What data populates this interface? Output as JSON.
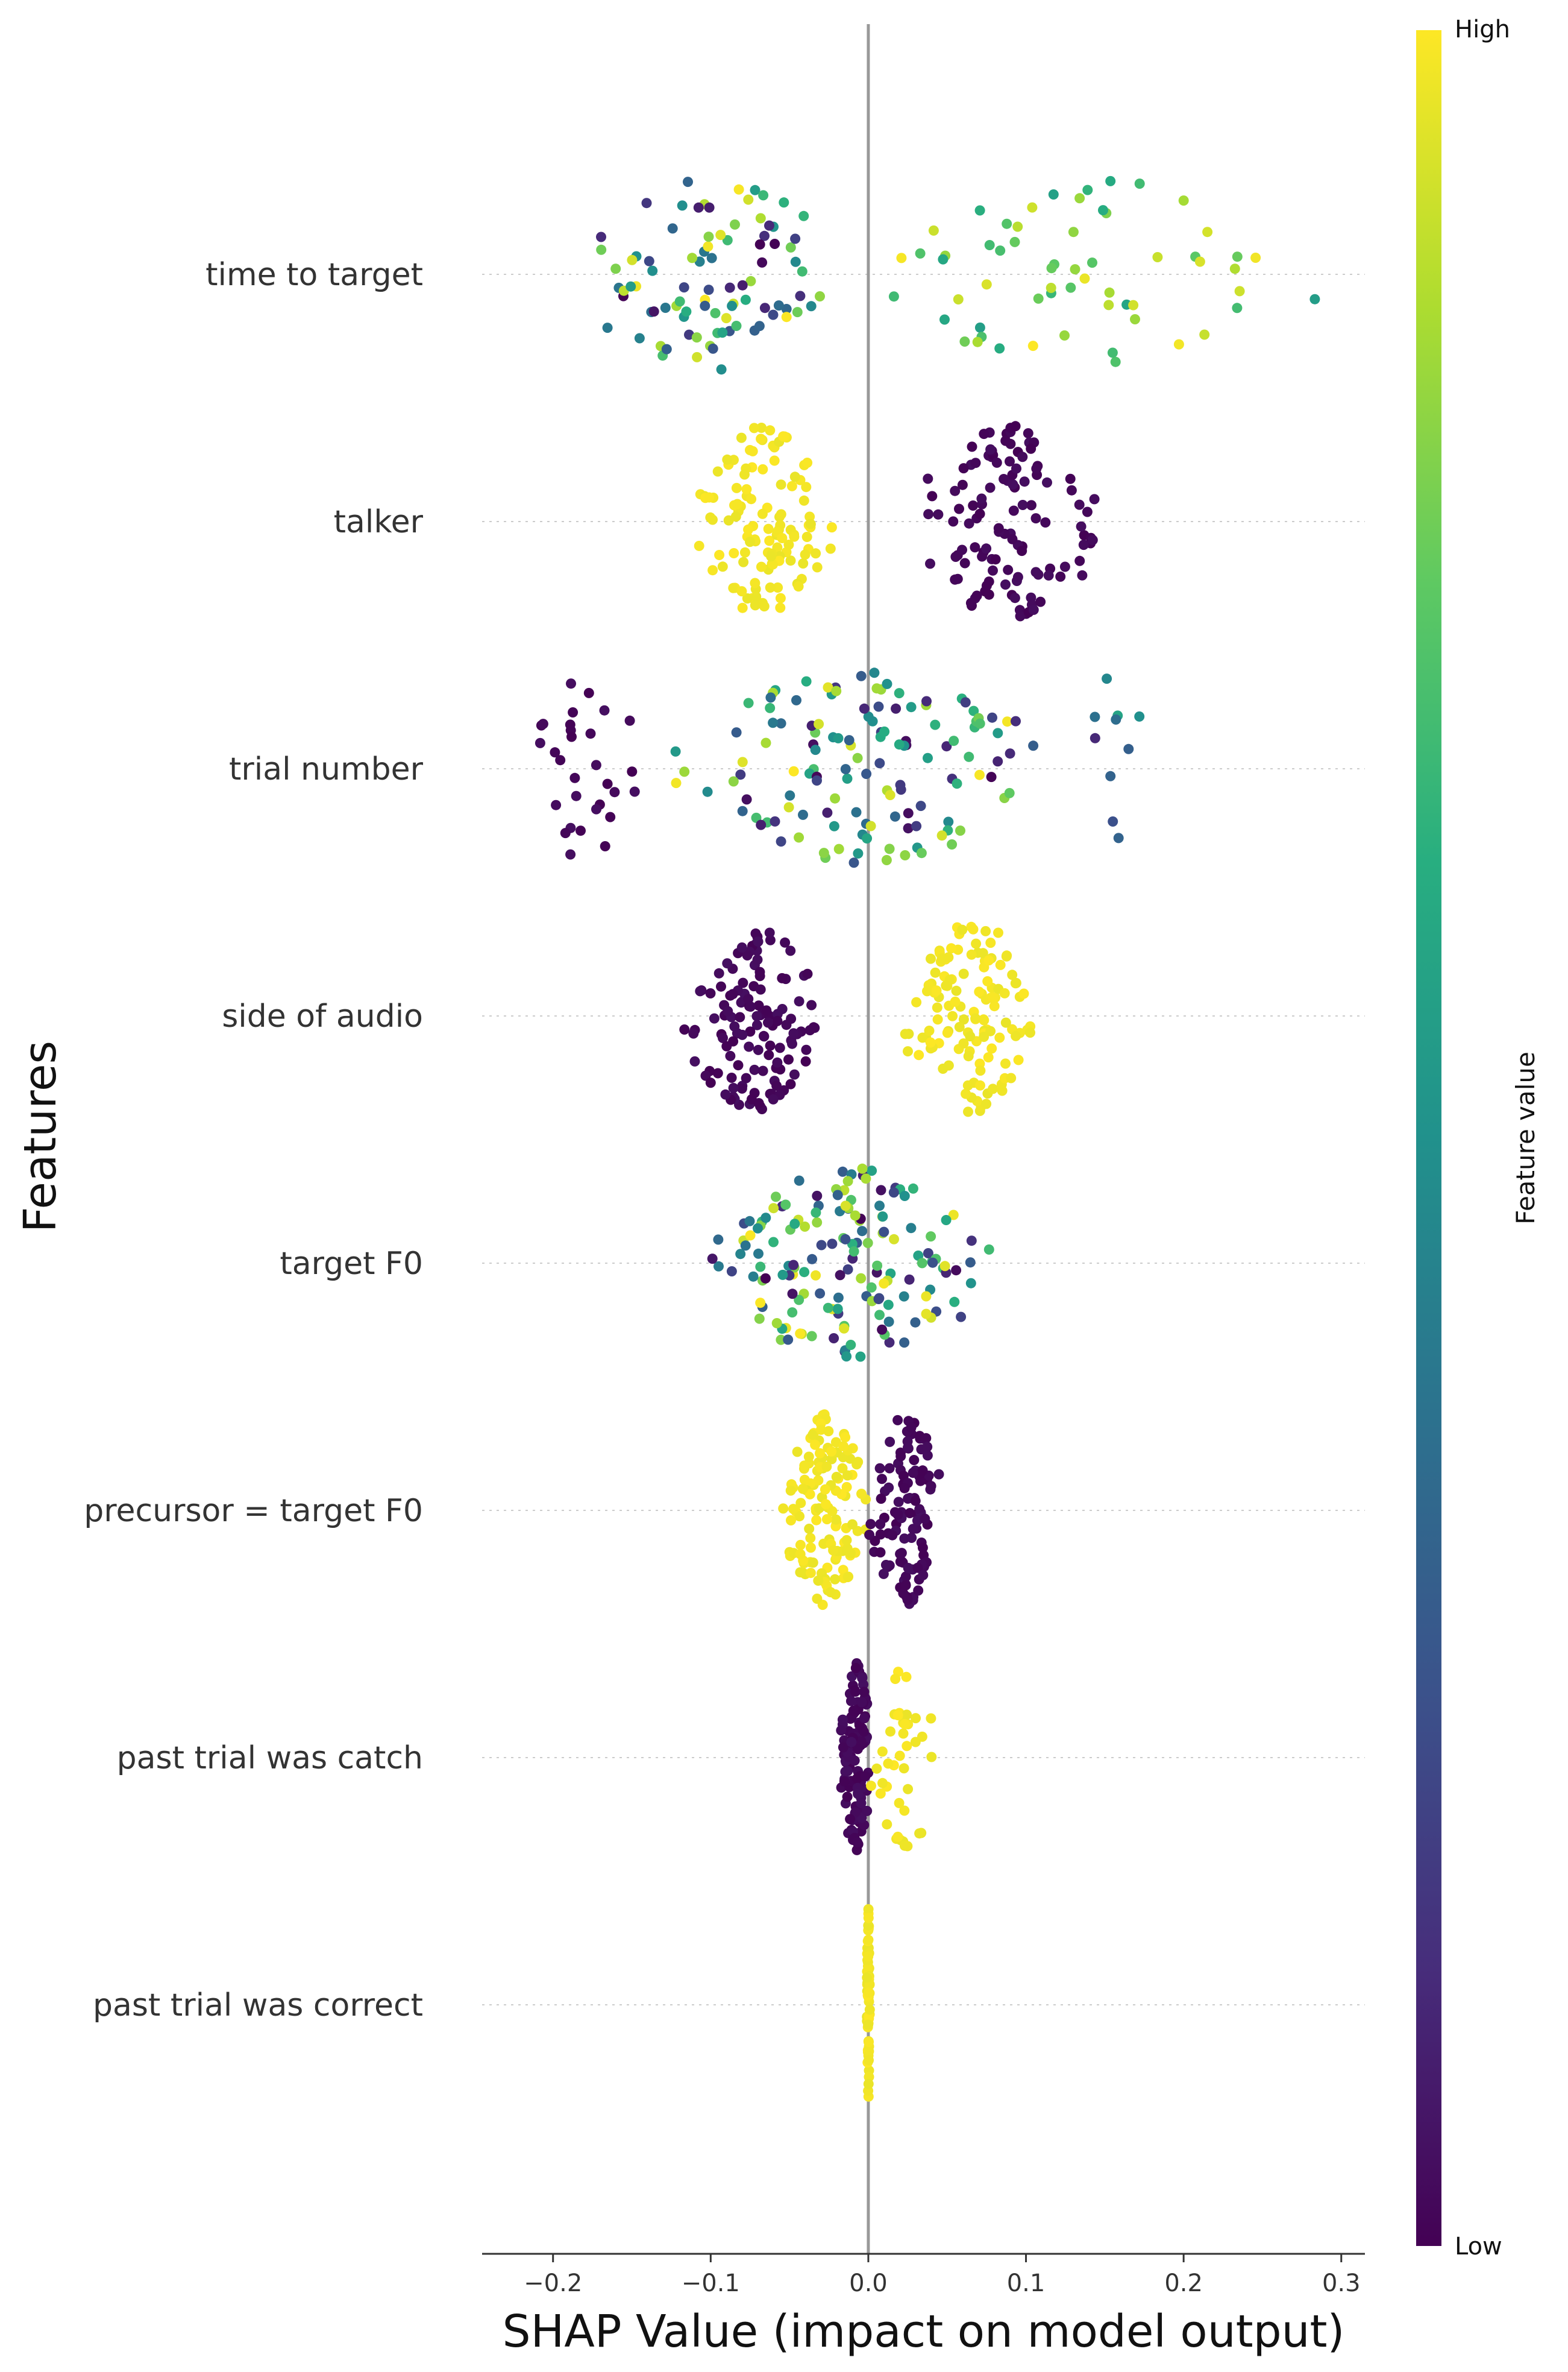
{
  "chart_data": {
    "type": "scatter",
    "subtype": "shap-beeswarm",
    "xlabel": "SHAP Value (impact on model output)",
    "ylabel": "Features",
    "xlim": [
      -0.245,
      0.315
    ],
    "xticks": [
      -0.2,
      -0.1,
      0.0,
      0.1,
      0.2,
      0.3
    ],
    "xtick_labels": [
      "−0.2",
      "−0.1",
      "0.0",
      "0.1",
      "0.2",
      "0.3"
    ],
    "colorbar": {
      "title": "Feature value",
      "high_label": "High",
      "low_label": "Low",
      "colormap": "viridis"
    },
    "colors": {
      "low": "#440154",
      "high": "#fde725",
      "zero_line": "#999999",
      "axis": "#333333"
    },
    "features": [
      {
        "name": "time to target",
        "points": [
          {
            "range": [
              -0.19,
              -0.01
            ],
            "n": 90,
            "value": "mixed"
          },
          {
            "range": [
              -0.01,
              0.29
            ],
            "n": 60,
            "value": "mid-high"
          }
        ]
      },
      {
        "name": "talker",
        "points": [
          {
            "range": [
              -0.11,
              -0.02
            ],
            "n": 120,
            "value": "high"
          },
          {
            "range": [
              0.025,
              0.155
            ],
            "n": 120,
            "value": "low"
          }
        ]
      },
      {
        "name": "trial number",
        "points": [
          {
            "range": [
              -0.22,
              -0.14
            ],
            "n": 30,
            "value": "low"
          },
          {
            "range": [
              -0.13,
              0.12
            ],
            "n": 130,
            "value": "mixed"
          },
          {
            "range": [
              0.12,
              0.18
            ],
            "n": 10,
            "value": "low-mid"
          }
        ]
      },
      {
        "name": "side of audio",
        "points": [
          {
            "range": [
              -0.12,
              -0.03
            ],
            "n": 130,
            "value": "low"
          },
          {
            "range": [
              0.02,
              0.11
            ],
            "n": 130,
            "value": "high"
          }
        ]
      },
      {
        "name": "target F0",
        "points": [
          {
            "range": [
              -0.105,
              0.085
            ],
            "n": 160,
            "value": "mixed"
          }
        ]
      },
      {
        "name": "precursor = target F0",
        "points": [
          {
            "range": [
              -0.055,
              0.0
            ],
            "n": 130,
            "value": "high"
          },
          {
            "range": [
              0.0,
              0.048
            ],
            "n": 110,
            "value": "low"
          }
        ]
      },
      {
        "name": "past trial was catch",
        "points": [
          {
            "range": [
              -0.018,
              0.002
            ],
            "n": 120,
            "value": "low"
          },
          {
            "range": [
              0.0,
              0.045
            ],
            "n": 40,
            "value": "high"
          }
        ]
      },
      {
        "name": "past trial was correct",
        "points": [
          {
            "range": [
              -0.001,
              0.001
            ],
            "n": 60,
            "value": "high"
          }
        ]
      }
    ]
  }
}
